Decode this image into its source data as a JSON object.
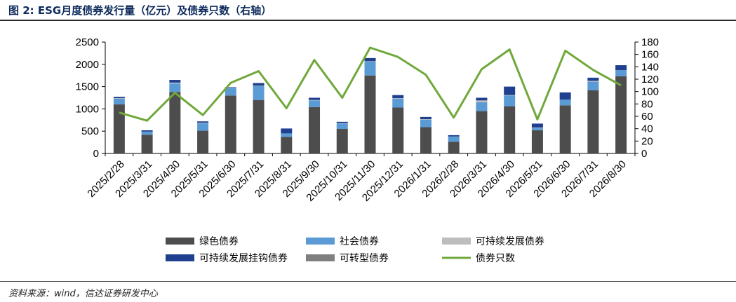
{
  "title": "图 2:  ESG月度债券发行量（亿元）及债券只数（右轴）",
  "source": "资料来源：wind，信达证券研发中心",
  "colors": {
    "green_bond": "#4d4d4d",
    "social_bond": "#5b9bd5",
    "sustainable_bond": "#bdbdbd",
    "sustainability_linked_bond": "#1f3f8f",
    "transition_bond": "#7f7f7f",
    "bond_count": "#70a83b"
  },
  "chart_data": {
    "type": "bar",
    "categories": [
      "2025/2/28",
      "2025/3/31",
      "2025/4/30",
      "2025/5/31",
      "2025/6/30",
      "2025/7/31",
      "2025/8/31",
      "2025/9/30",
      "2025/10/31",
      "2025/11/30",
      "2025/12/31",
      "2026/1/31",
      "2026/2/28",
      "2026/3/31",
      "2026/4/30",
      "2026/5/31",
      "2026/6/30",
      "2026/7/31",
      "2026/8/30"
    ],
    "series": [
      {
        "name": "绿色债券",
        "color_key": "green_bond",
        "values": [
          1100,
          420,
          1380,
          510,
          1300,
          1200,
          370,
          1040,
          550,
          1750,
          1030,
          590,
          260,
          950,
          1060,
          520,
          1080,
          1420,
          1730
        ]
      },
      {
        "name": "社会债券",
        "color_key": "social_bond",
        "values": [
          130,
          70,
          190,
          170,
          170,
          310,
          80,
          150,
          120,
          310,
          200,
          170,
          120,
          200,
          240,
          50,
          130,
          190,
          140
        ]
      },
      {
        "name": "可持续发展债券",
        "color_key": "sustainable_bond",
        "values": [
          10,
          0,
          20,
          10,
          10,
          10,
          0,
          10,
          10,
          10,
          10,
          10,
          0,
          40,
          10,
          10,
          0,
          20,
          0
        ]
      },
      {
        "name": "可持续发展挂钩债券",
        "color_key": "sustainability_linked_bond",
        "values": [
          30,
          30,
          60,
          30,
          10,
          60,
          110,
          50,
          30,
          70,
          70,
          50,
          30,
          60,
          190,
          90,
          160,
          70,
          110
        ]
      },
      {
        "name": "可转型债券",
        "color_key": "transition_bond",
        "values": [
          0,
          0,
          0,
          0,
          0,
          0,
          0,
          0,
          0,
          0,
          0,
          0,
          0,
          0,
          0,
          0,
          0,
          0,
          0
        ]
      }
    ],
    "line_series": {
      "name": "债券只数",
      "color_key": "bond_count",
      "axis": "right",
      "values": [
        66,
        53,
        98,
        62,
        114,
        133,
        73,
        151,
        90,
        171,
        156,
        127,
        58,
        136,
        168,
        55,
        166,
        135,
        110
      ]
    },
    "ylim_left": [
      0,
      2500
    ],
    "yticks_left": [
      0,
      500,
      1000,
      1500,
      2000,
      2500
    ],
    "ylim_right": [
      0,
      180
    ],
    "yticks_right": [
      0,
      20,
      40,
      60,
      80,
      100,
      120,
      140,
      160,
      180
    ],
    "grid": false,
    "legend_position": "bottom",
    "legend": [
      {
        "label": "绿色债券",
        "kind": "box",
        "color_key": "green_bond"
      },
      {
        "label": "社会债券",
        "kind": "box",
        "color_key": "social_bond"
      },
      {
        "label": "可持续发展债券",
        "kind": "box",
        "color_key": "sustainable_bond"
      },
      {
        "label": "可持续发展挂钩债券",
        "kind": "box",
        "color_key": "sustainability_linked_bond"
      },
      {
        "label": "可转型债券",
        "kind": "box",
        "color_key": "transition_bond"
      },
      {
        "label": "债券只数",
        "kind": "line",
        "color_key": "bond_count"
      }
    ]
  }
}
